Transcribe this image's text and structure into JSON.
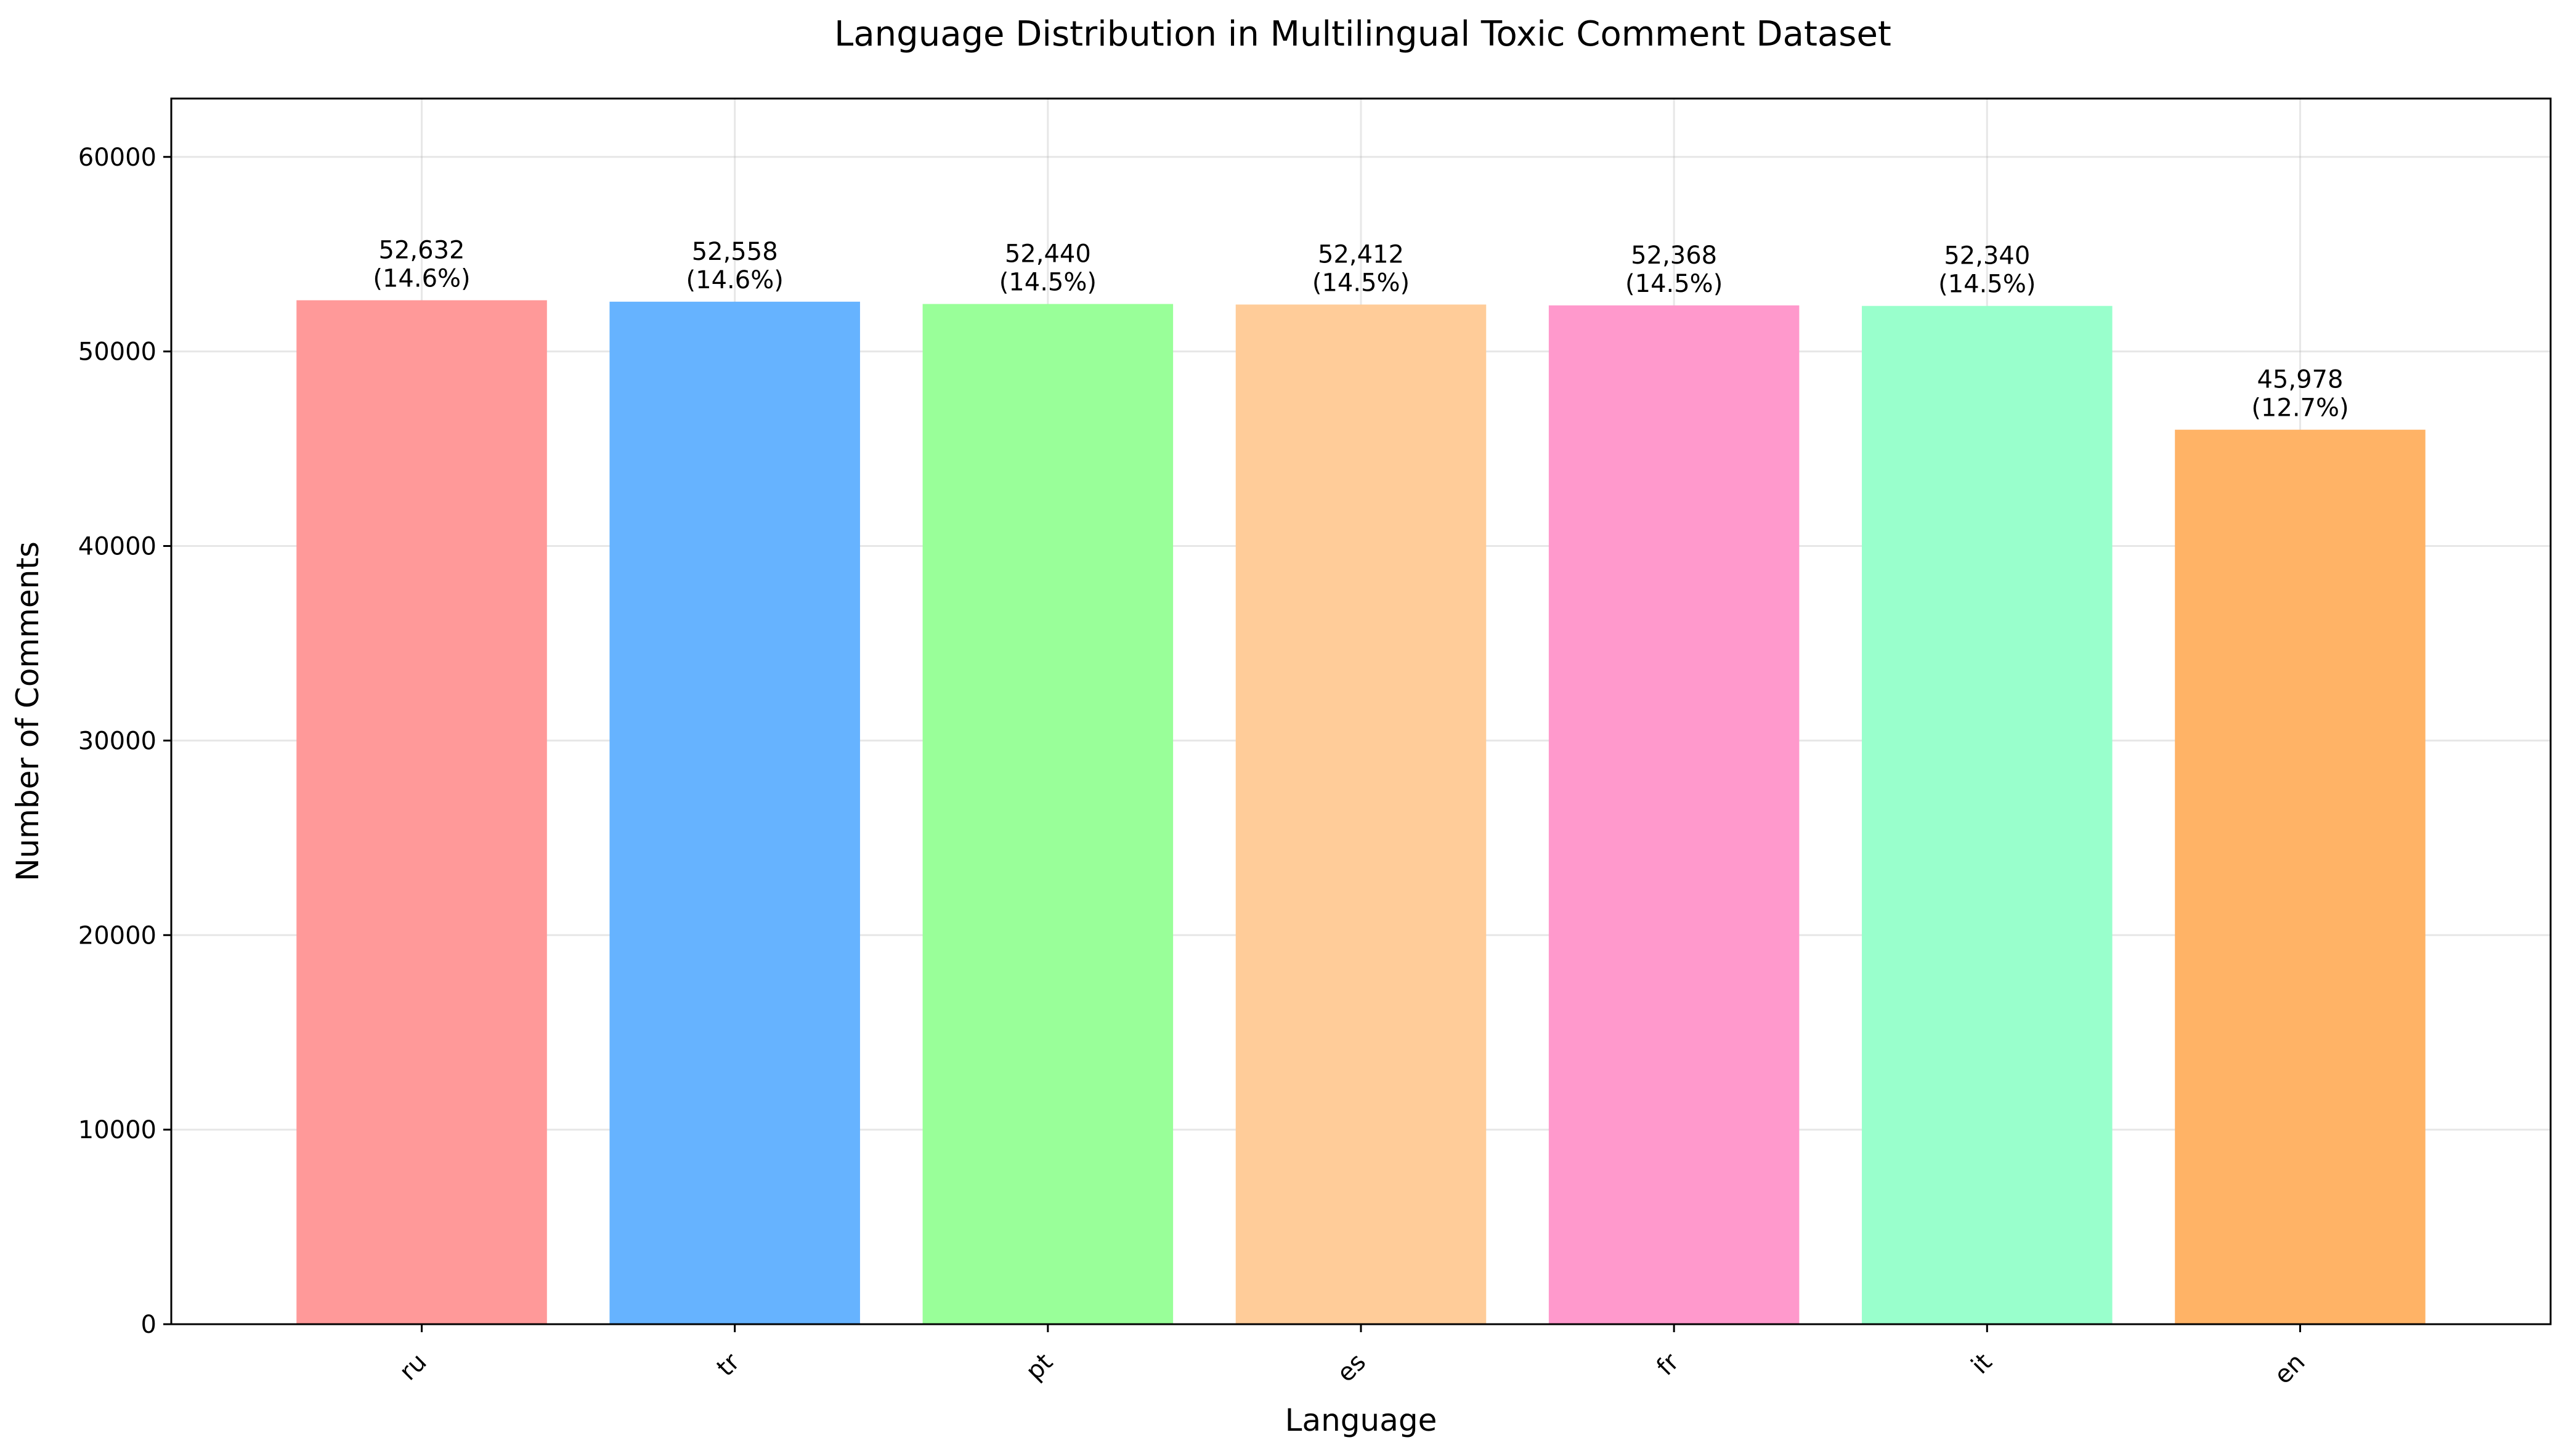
{
  "chart_data": {
    "type": "bar",
    "title": "Language Distribution in Multilingual Toxic Comment Dataset",
    "xlabel": "Language",
    "ylabel": "Number of Comments",
    "categories": [
      "ru",
      "tr",
      "pt",
      "es",
      "fr",
      "it",
      "en"
    ],
    "values": [
      52632,
      52558,
      52440,
      52412,
      52368,
      52340,
      45978
    ],
    "value_labels": [
      "52,632",
      "52,558",
      "52,440",
      "52,412",
      "52,368",
      "52,340",
      "45,978"
    ],
    "percent_labels": [
      "(14.6%)",
      "(14.6%)",
      "(14.5%)",
      "(14.5%)",
      "(14.5%)",
      "(14.5%)",
      "(12.7%)"
    ],
    "colors": [
      "#ff9999",
      "#66b3ff",
      "#99ff99",
      "#ffcc99",
      "#ff99cc",
      "#99ffcc",
      "#ffb366"
    ],
    "ylim": [
      0,
      63000
    ],
    "yticks": [
      0,
      10000,
      20000,
      30000,
      40000,
      50000,
      60000
    ],
    "grid": true,
    "legend": "none"
  }
}
